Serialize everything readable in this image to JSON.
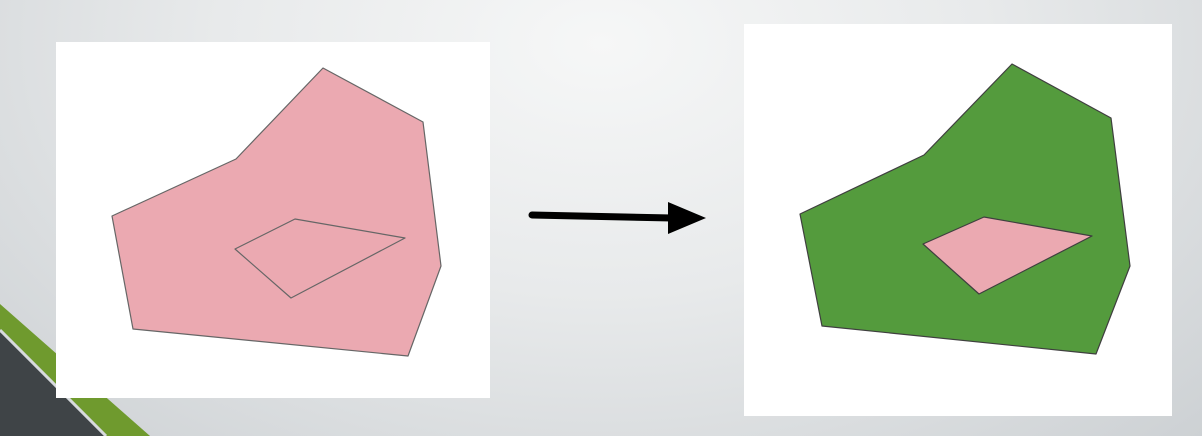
{
  "diagram": {
    "before": {
      "outer_polygon_fill": "#eba9b1",
      "inner_polygon_style": "outline only"
    },
    "after": {
      "outer_polygon_fill": "#549b3d",
      "inner_polygon_fill": "#eba9b1"
    },
    "arrow": {
      "direction": "right",
      "color": "#000000"
    }
  },
  "theme": {
    "background": "#e9ebec",
    "accent_green": "#6f9a2e",
    "accent_dark": "#3f4447",
    "outline": "#666666"
  }
}
